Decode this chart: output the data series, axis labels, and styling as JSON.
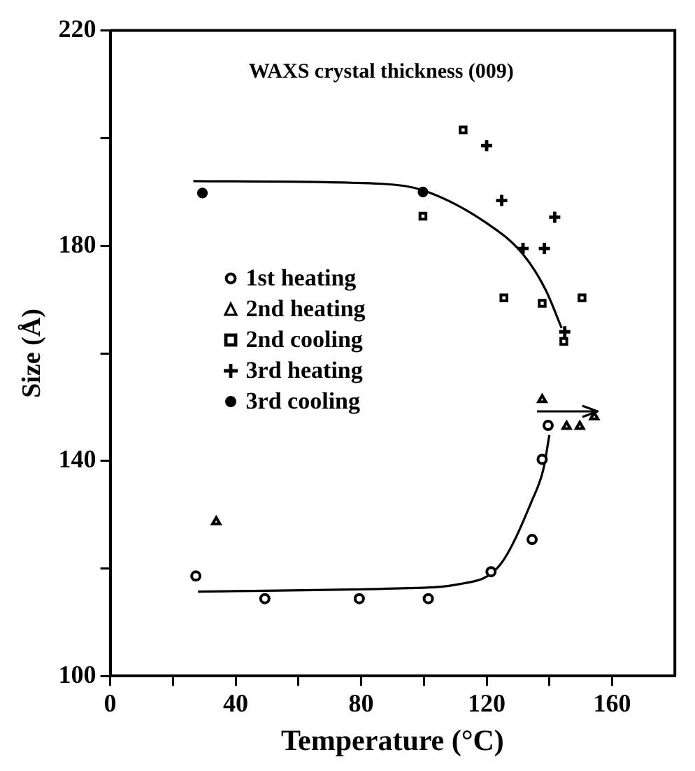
{
  "chart_data": {
    "type": "scatter",
    "title": "WAXS crystal thickness (009)",
    "xlabel": "Temperature (°C)",
    "ylabel": "Size (Å)",
    "xlim": [
      0,
      180
    ],
    "xticks": [
      0,
      {
        "value": 20,
        "label": null
      },
      40,
      {
        "value": 60,
        "label": null
      },
      80,
      {
        "value": 100,
        "label": null
      },
      120,
      {
        "value": 140,
        "label": null
      },
      160
    ],
    "ylim": [
      100,
      220
    ],
    "yticks": [
      100,
      {
        "value": 120,
        "label": null
      },
      140,
      {
        "value": 160,
        "label": null
      },
      180,
      {
        "value": 200,
        "label": null
      },
      220
    ],
    "grid": false,
    "legend": "left",
    "series": [
      {
        "name": "1st heating",
        "color": "#000000",
        "marker": "circle",
        "x": [
          27.3,
          49.3,
          79.4,
          101.4,
          121.4,
          134.5,
          137.7,
          139.6
        ],
        "values": [
          118.6,
          114.4,
          114.4,
          114.4,
          119.4,
          125.4,
          140.3,
          146.6
        ]
      },
      {
        "name": "2nd heating",
        "color": "#000000",
        "marker": "triangle",
        "x": [
          33.8,
          137.7,
          145.5,
          149.7,
          154.3
        ],
        "values": [
          128.7,
          151.4,
          146.4,
          146.4,
          148.2
        ]
      },
      {
        "name": "2nd cooling",
        "color": "#000000",
        "marker": "square",
        "x": [
          112.5,
          99.7,
          125.5,
          137.7,
          150.4,
          144.6
        ],
        "values": [
          201.5,
          185.5,
          170.3,
          169.3,
          170.3,
          162.2
        ]
      },
      {
        "name": "3rd heating",
        "color": "#000000",
        "marker": "cross",
        "x": [
          120,
          124.8,
          141.7,
          131.6,
          138.4,
          144.9
        ],
        "values": [
          198.6,
          188.4,
          185.3,
          179.5,
          179.5,
          164
        ]
      },
      {
        "name": "3rd cooling",
        "color": "#000000",
        "marker": "circle",
        "x": [
          29.4,
          99.7
        ],
        "values": [
          189.8,
          190
        ]
      },
      {
        "type": "line",
        "color": "#000000",
        "marker": "none",
        "x": [
          26.5,
          86.7,
          99.7,
          120,
          131.6,
          138.8,
          143.9
        ],
        "values": [
          192,
          191.5,
          190.3,
          184.2,
          178.4,
          171.8,
          164.7
        ]
      },
      {
        "type": "line",
        "color": "#000000",
        "marker": "none",
        "x": [
          28,
          91,
          111.3,
          124.3,
          134.5,
          138.1,
          140
        ],
        "values": [
          115.7,
          116.3,
          117.1,
          120.7,
          132.7,
          138.5,
          144.8
        ]
      }
    ]
  }
}
